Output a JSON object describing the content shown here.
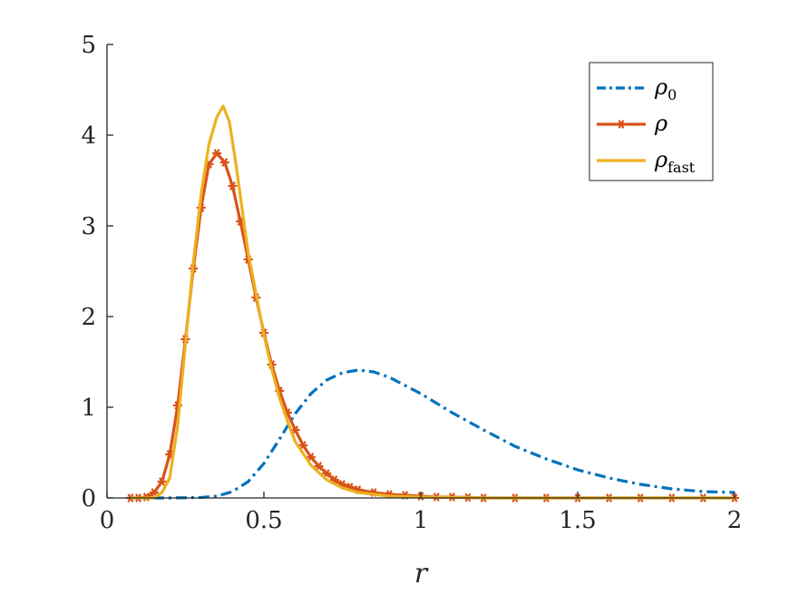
{
  "chart_data": {
    "type": "line",
    "xlabel": "r",
    "ylabel": "",
    "title": "",
    "xlim": [
      0,
      2
    ],
    "ylim": [
      0,
      5
    ],
    "xticks": [
      "0",
      "0.5",
      "1",
      "1.5",
      "2"
    ],
    "yticks": [
      "0",
      "1",
      "2",
      "3",
      "4",
      "5"
    ],
    "grid": false,
    "legend_position": "top-right",
    "series": [
      {
        "name": "ρ0",
        "legend_main": "ρ",
        "legend_sub": "0",
        "color": "#0072BD",
        "style": "dash-dot",
        "x": [
          0.075,
          0.2,
          0.3,
          0.35,
          0.4,
          0.45,
          0.5,
          0.55,
          0.6,
          0.65,
          0.7,
          0.75,
          0.8,
          0.85,
          0.9,
          1.0,
          1.1,
          1.2,
          1.3,
          1.4,
          1.5,
          1.6,
          1.7,
          1.8,
          1.9,
          2.0
        ],
        "y": [
          0,
          0,
          0.005,
          0.02,
          0.07,
          0.18,
          0.38,
          0.65,
          0.93,
          1.15,
          1.3,
          1.38,
          1.41,
          1.39,
          1.33,
          1.15,
          0.94,
          0.75,
          0.57,
          0.43,
          0.31,
          0.22,
          0.15,
          0.1,
          0.07,
          0.06
        ]
      },
      {
        "name": "ρ",
        "legend_main": "ρ",
        "legend_sub": "",
        "color": "#D95319",
        "style": "solid-marker",
        "x": [
          0.075,
          0.1,
          0.125,
          0.15,
          0.175,
          0.2,
          0.225,
          0.25,
          0.275,
          0.3,
          0.325,
          0.35,
          0.375,
          0.4,
          0.425,
          0.45,
          0.475,
          0.5,
          0.525,
          0.55,
          0.575,
          0.6,
          0.625,
          0.65,
          0.675,
          0.7,
          0.725,
          0.75,
          0.775,
          0.8,
          0.85,
          0.9,
          0.95,
          1.0,
          1.05,
          1.1,
          1.15,
          1.2,
          1.3,
          1.4,
          1.5,
          1.6,
          1.7,
          1.8,
          1.9,
          2.0
        ],
        "y": [
          0,
          0,
          0.01,
          0.06,
          0.18,
          0.48,
          1.02,
          1.75,
          2.53,
          3.2,
          3.68,
          3.8,
          3.7,
          3.44,
          3.05,
          2.63,
          2.21,
          1.82,
          1.47,
          1.18,
          0.94,
          0.75,
          0.58,
          0.45,
          0.35,
          0.27,
          0.2,
          0.15,
          0.12,
          0.09,
          0.06,
          0.04,
          0.03,
          0.02,
          0.01,
          0.01,
          0.005,
          0,
          0,
          0,
          0,
          0,
          0,
          0,
          0,
          0
        ]
      },
      {
        "name": "ρfast",
        "legend_main": "ρ",
        "legend_sub": "fast",
        "color": "#EDB120",
        "style": "solid",
        "x": [
          0.075,
          0.15,
          0.175,
          0.2,
          0.225,
          0.25,
          0.275,
          0.3,
          0.325,
          0.35,
          0.37,
          0.39,
          0.41,
          0.43,
          0.45,
          0.475,
          0.5,
          0.525,
          0.55,
          0.575,
          0.6,
          0.65,
          0.7,
          0.75,
          0.8,
          0.9,
          1.0,
          1.2,
          1.5,
          2.0
        ],
        "y": [
          0,
          0,
          0.06,
          0.22,
          0.8,
          1.7,
          2.6,
          3.35,
          3.9,
          4.2,
          4.32,
          4.15,
          3.7,
          3.2,
          2.7,
          2.25,
          1.8,
          1.42,
          1.1,
          0.85,
          0.62,
          0.36,
          0.2,
          0.11,
          0.06,
          0.02,
          0.01,
          0,
          0,
          0
        ]
      }
    ]
  }
}
